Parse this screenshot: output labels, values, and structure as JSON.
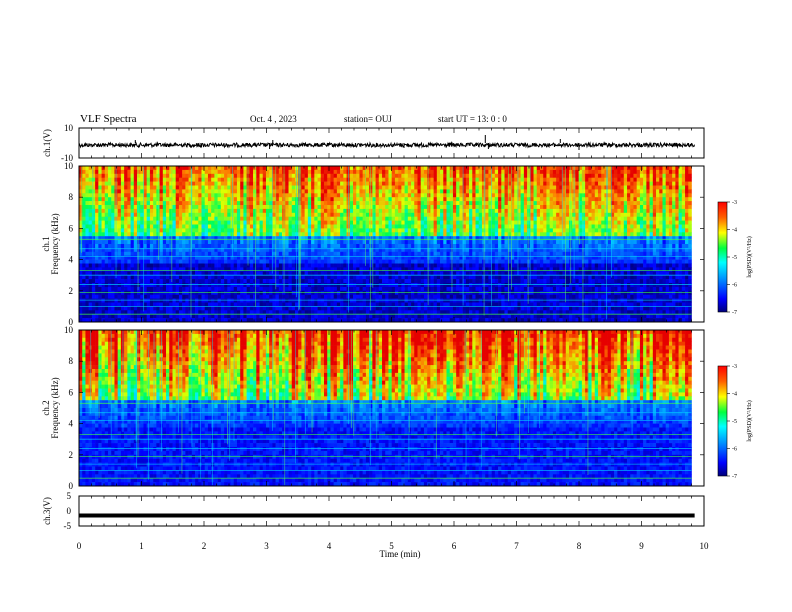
{
  "header": {
    "title": "VLF Spectra",
    "date": "Oct. 4 , 2023",
    "station": "station= OUJ",
    "start": "start UT = 13: 0 : 0"
  },
  "chart_data": [
    {
      "type": "line",
      "panel": "ch1-waveform",
      "ylabel": "ch.1(V)",
      "ylim": [
        -10,
        10
      ],
      "yticks": [
        "10",
        "-10"
      ],
      "xlim": [
        0,
        10
      ],
      "baseline": 0,
      "line_color": "#000000"
    },
    {
      "type": "heatmap",
      "panel": "ch1-spectrogram",
      "ylabel_lines": [
        "ch.1",
        "Frequency (kHz)"
      ],
      "ylim": [
        0,
        10
      ],
      "yticks": [
        "0",
        "2",
        "4",
        "6",
        "8",
        "10"
      ],
      "xlim": [
        0,
        10
      ],
      "data_end_min": 9.8,
      "colorbar": {
        "ticks": [
          "-3",
          "-4",
          "-5",
          "-6",
          "-7"
        ],
        "label": "log(PSD)(V²/Hz)",
        "range": [
          -7,
          -3
        ]
      }
    },
    {
      "type": "heatmap",
      "panel": "ch2-spectrogram",
      "ylabel_lines": [
        "ch.2",
        "Frequency (kHz)"
      ],
      "ylim": [
        0,
        10
      ],
      "yticks": [
        "0",
        "2",
        "4",
        "6",
        "8",
        "10"
      ],
      "xlim": [
        0,
        10
      ],
      "data_end_min": 9.8,
      "colorbar": {
        "ticks": [
          "-3",
          "-4",
          "-5",
          "-6",
          "-7"
        ],
        "label": "log(PSD)(V²/Hz)",
        "range": [
          -7,
          -3
        ]
      }
    },
    {
      "type": "line",
      "panel": "ch3-waveform",
      "ylabel": "ch.3(V)",
      "ylim": [
        -5,
        5
      ],
      "yticks": [
        "5",
        "0",
        "-5"
      ],
      "xlim": [
        0,
        10
      ],
      "baseline": -1.5,
      "xticks": [
        "0",
        "1",
        "2",
        "3",
        "4",
        "5",
        "6",
        "7",
        "8",
        "9",
        "10"
      ],
      "xlabel": "Time (min)"
    }
  ],
  "colors": {
    "palette": [
      "#00007a",
      "#0000ff",
      "#0080ff",
      "#00e0ff",
      "#00ff60",
      "#a0ff00",
      "#ffff00",
      "#ff8000",
      "#e00000"
    ]
  }
}
